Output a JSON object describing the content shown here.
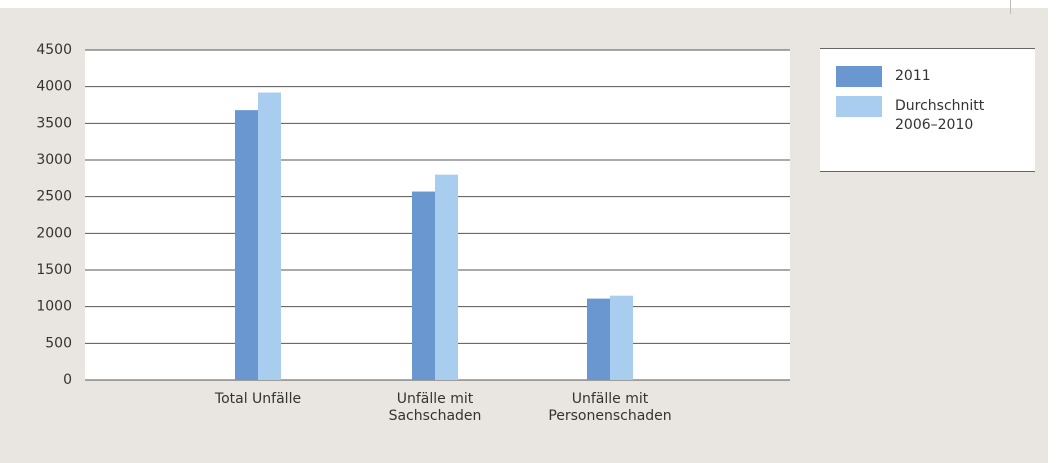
{
  "chart_data": {
    "type": "bar",
    "categories": [
      "Total Unfälle",
      "Unfälle mit Sachschaden",
      "Unfälle mit Personenschaden"
    ],
    "series": [
      {
        "name": "2011",
        "color": "#6a97cf",
        "values": [
          3680,
          2570,
          1110
        ]
      },
      {
        "name": "Durchschnitt 2006–2010",
        "color": "#a9cdef",
        "values": [
          3920,
          2800,
          1150
        ]
      }
    ],
    "ylim": [
      0,
      4500
    ],
    "yticks": [
      0,
      500,
      1000,
      1500,
      2000,
      2500,
      3000,
      3500,
      4000,
      4500
    ],
    "grid": true,
    "legend": "right"
  }
}
